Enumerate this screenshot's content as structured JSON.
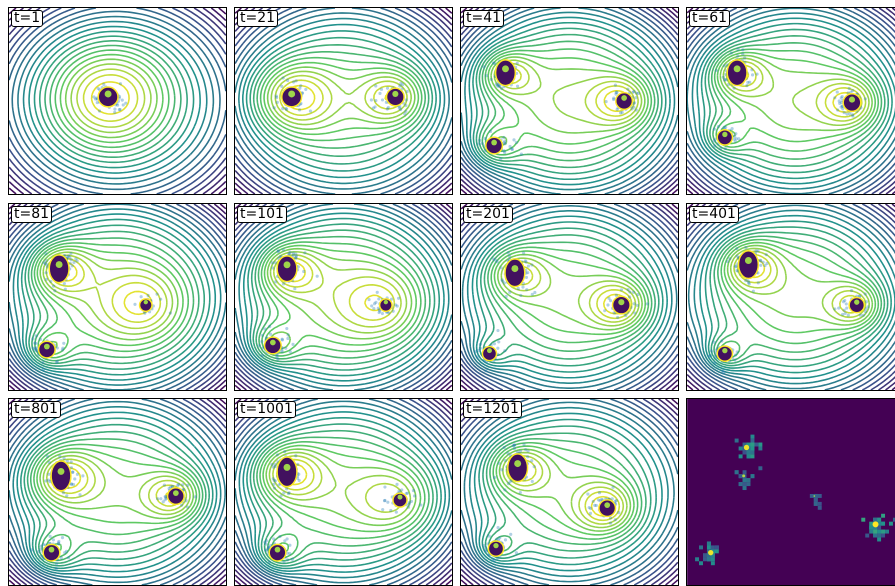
{
  "chart_data": {
    "type": "contour",
    "panels": [
      {
        "label": "t=1",
        "wells": [
          [
            -0.1,
            0.05,
            2.2,
            0.45
          ]
        ],
        "mass": [
          [
            -0.1,
            0.05,
            1.0,
            1.0
          ]
        ]
      },
      {
        "label": "t=21",
        "wells": [
          [
            -0.55,
            0.05,
            1.8,
            0.3
          ],
          [
            0.55,
            0.05,
            1.6,
            0.25
          ]
        ],
        "mass": [
          [
            -0.55,
            0.05,
            1.0,
            1.0
          ],
          [
            0.55,
            0.05,
            0.8,
            1.0
          ]
        ]
      },
      {
        "label": "t=41",
        "wells": [
          [
            -0.68,
            0.35,
            1.4,
            0.2
          ],
          [
            -0.8,
            -0.55,
            1.2,
            0.18
          ],
          [
            0.58,
            0.0,
            1.3,
            0.22
          ]
        ],
        "mass": [
          [
            -0.68,
            0.35,
            1.0,
            1.3
          ],
          [
            -0.8,
            -0.55,
            0.7,
            1.0
          ],
          [
            0.58,
            0.0,
            0.7,
            1.0
          ]
        ]
      },
      {
        "label": "t=61",
        "wells": [
          [
            -0.62,
            0.35,
            1.5,
            0.2
          ],
          [
            -0.75,
            -0.45,
            1.0,
            0.15
          ],
          [
            0.6,
            -0.02,
            1.4,
            0.22
          ]
        ],
        "mass": [
          [
            -0.62,
            0.35,
            1.0,
            1.3
          ],
          [
            -0.75,
            -0.45,
            0.6,
            1.0
          ],
          [
            0.6,
            -0.02,
            0.8,
            1.0
          ]
        ]
      },
      {
        "label": "t=81",
        "wells": [
          [
            -0.62,
            0.35,
            1.6,
            0.22
          ],
          [
            -0.75,
            -0.65,
            1.3,
            0.18
          ],
          [
            0.3,
            -0.1,
            0.9,
            0.3
          ]
        ],
        "mass": [
          [
            -0.62,
            0.35,
            1.0,
            1.4
          ],
          [
            -0.75,
            -0.65,
            0.7,
            1.0
          ],
          [
            0.3,
            -0.1,
            0.4,
            1.0
          ]
        ]
      },
      {
        "label": "t=101",
        "wells": [
          [
            -0.6,
            0.35,
            1.5,
            0.22
          ],
          [
            -0.75,
            -0.6,
            1.3,
            0.18
          ],
          [
            0.45,
            -0.1,
            0.9,
            0.3
          ]
        ],
        "mass": [
          [
            -0.6,
            0.35,
            1.0,
            1.3
          ],
          [
            -0.75,
            -0.6,
            0.7,
            1.0
          ],
          [
            0.45,
            -0.1,
            0.4,
            1.0
          ]
        ]
      },
      {
        "label": "t=201",
        "wells": [
          [
            -0.58,
            0.3,
            1.4,
            0.22
          ],
          [
            -0.85,
            -0.7,
            1.0,
            0.15
          ],
          [
            0.55,
            -0.1,
            1.5,
            0.22
          ]
        ],
        "mass": [
          [
            -0.58,
            0.3,
            1.0,
            1.4
          ],
          [
            -0.85,
            -0.7,
            0.5,
            1.0
          ],
          [
            0.55,
            -0.1,
            0.8,
            1.0
          ]
        ]
      },
      {
        "label": "t=401",
        "wells": [
          [
            -0.5,
            0.4,
            1.6,
            0.22
          ],
          [
            -0.75,
            -0.7,
            1.3,
            0.15
          ],
          [
            0.65,
            -0.1,
            1.4,
            0.2
          ]
        ],
        "mass": [
          [
            -0.5,
            0.4,
            1.0,
            1.4
          ],
          [
            -0.75,
            -0.7,
            0.6,
            1.0
          ],
          [
            0.65,
            -0.1,
            0.6,
            1.0
          ]
        ]
      },
      {
        "label": "t=801",
        "wells": [
          [
            -0.6,
            0.2,
            1.7,
            0.25
          ],
          [
            -0.7,
            -0.75,
            1.4,
            0.18
          ],
          [
            0.62,
            -0.05,
            1.5,
            0.22
          ]
        ],
        "mass": [
          [
            -0.6,
            0.2,
            1.0,
            1.5
          ],
          [
            -0.7,
            -0.75,
            0.7,
            1.0
          ],
          [
            0.62,
            -0.05,
            0.7,
            1.0
          ]
        ]
      },
      {
        "label": "t=1001",
        "wells": [
          [
            -0.6,
            0.25,
            1.7,
            0.25
          ],
          [
            -0.7,
            -0.75,
            1.4,
            0.18
          ],
          [
            0.6,
            -0.1,
            1.1,
            0.3
          ]
        ],
        "mass": [
          [
            -0.6,
            0.25,
            1.0,
            1.5
          ],
          [
            -0.7,
            -0.75,
            0.7,
            1.0
          ],
          [
            0.6,
            -0.1,
            0.5,
            1.0
          ]
        ]
      },
      {
        "label": "t=1201",
        "wells": [
          [
            -0.55,
            0.3,
            1.6,
            0.22
          ],
          [
            -0.78,
            -0.7,
            1.2,
            0.16
          ],
          [
            0.4,
            -0.2,
            1.5,
            0.22
          ]
        ],
        "mass": [
          [
            -0.55,
            0.3,
            1.0,
            1.4
          ],
          [
            -0.78,
            -0.7,
            0.6,
            1.0
          ],
          [
            0.4,
            -0.2,
            0.7,
            1.0
          ]
        ]
      },
      {
        "label": "",
        "density": [
          [
            -0.52,
            0.55,
            0.9
          ],
          [
            -0.55,
            0.2,
            0.5
          ],
          [
            0.85,
            -0.4,
            1.0
          ],
          [
            -0.9,
            -0.75,
            0.9
          ],
          [
            0.2,
            -0.05,
            0.3
          ]
        ]
      }
    ]
  }
}
